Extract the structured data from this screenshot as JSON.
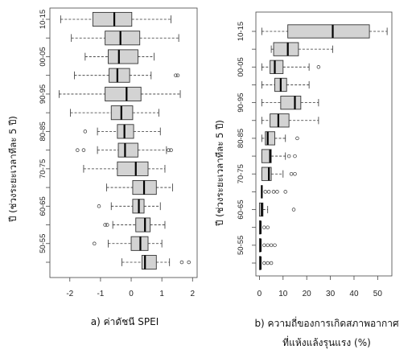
{
  "chart_data": [
    {
      "type": "boxplot",
      "orientation": "horizontal",
      "ylabel": "ปี (ช่วงระยะเวลาทีละ 5 ปี)",
      "caption": "a) ค่าดัชนี SPEI",
      "xticks": [
        -2,
        -1,
        0,
        1,
        2
      ],
      "xlim": [
        -2.65,
        2.15
      ],
      "categories_labeled": [
        "10-15",
        "00-05",
        "90-95",
        "80-85",
        "70-75",
        "60-65",
        "50-55"
      ],
      "boxes": [
        {
          "min": -2.3,
          "q1": -1.25,
          "median": -0.55,
          "q3": 0.02,
          "max": 1.3,
          "outliers": []
        },
        {
          "min": -1.95,
          "q1": -0.85,
          "median": -0.35,
          "q3": 0.28,
          "max": 1.55,
          "outliers": []
        },
        {
          "min": -1.5,
          "q1": -0.75,
          "median": -0.4,
          "q3": 0.22,
          "max": 0.75,
          "outliers": []
        },
        {
          "min": -1.85,
          "q1": -0.72,
          "median": -0.45,
          "q3": -0.05,
          "max": 0.65,
          "outliers": [
            1.45,
            1.52
          ]
        },
        {
          "min": -2.35,
          "q1": -0.85,
          "median": -0.15,
          "q3": 0.32,
          "max": 1.6,
          "outliers": []
        },
        {
          "min": -1.98,
          "q1": -0.65,
          "median": -0.32,
          "q3": 0.05,
          "max": 0.9,
          "outliers": []
        },
        {
          "min": -1.1,
          "q1": -0.45,
          "median": -0.22,
          "q3": 0.08,
          "max": 0.95,
          "outliers": [
            -1.5
          ]
        },
        {
          "min": -1.1,
          "q1": -0.42,
          "median": -0.2,
          "q3": 0.22,
          "max": 1.15,
          "outliers": [
            -1.75,
            -1.55,
            1.22,
            1.3
          ]
        },
        {
          "min": -1.55,
          "q1": -0.45,
          "median": 0.15,
          "q3": 0.55,
          "max": 1.1,
          "outliers": []
        },
        {
          "min": -0.8,
          "q1": 0.05,
          "median": 0.42,
          "q3": 0.82,
          "max": 1.35,
          "outliers": []
        },
        {
          "min": -0.65,
          "q1": 0.05,
          "median": 0.25,
          "q3": 0.42,
          "max": 0.95,
          "outliers": [
            -1.05
          ]
        },
        {
          "min": -0.6,
          "q1": 0.15,
          "median": 0.45,
          "q3": 0.62,
          "max": 1.1,
          "outliers": [
            -0.85,
            -0.78
          ]
        },
        {
          "min": -0.75,
          "q1": 0.0,
          "median": 0.3,
          "q3": 0.55,
          "max": 1.0,
          "outliers": [
            -1.2
          ]
        },
        {
          "min": -0.3,
          "q1": 0.35,
          "median": 0.45,
          "q3": 0.82,
          "max": 1.25,
          "outliers": [
            1.65,
            1.88
          ]
        }
      ]
    },
    {
      "type": "boxplot",
      "orientation": "horizontal",
      "ylabel": "ปี (ช่วงระยะเวลาทีละ 5 ปี)",
      "caption_line1": "b) ความถี่ของการเกิดสภาพอากาศ",
      "caption_line2": "ที่แห้งแล้งรุนแรง (%)",
      "xticks": [
        0,
        10,
        20,
        30,
        40,
        50
      ],
      "xlim": [
        -1.5,
        56
      ],
      "categories_labeled": [
        "10-15",
        "00-05",
        "90-95",
        "80-85",
        "70-75",
        "60-65",
        "50-55"
      ],
      "boxes": [
        {
          "min": 1,
          "q1": 12,
          "median": 31,
          "q3": 46.5,
          "max": 54,
          "outliers": []
        },
        {
          "min": 5,
          "q1": 6,
          "median": 12,
          "q3": 16.5,
          "max": 31,
          "outliers": []
        },
        {
          "min": 1,
          "q1": 4.5,
          "median": 6.5,
          "q3": 10,
          "max": 21,
          "outliers": [
            25
          ]
        },
        {
          "min": 1,
          "q1": 6.5,
          "median": 9,
          "q3": 11.5,
          "max": 21,
          "outliers": []
        },
        {
          "min": 1,
          "q1": 9,
          "median": 15,
          "q3": 17.5,
          "max": 25,
          "outliers": []
        },
        {
          "min": 1,
          "q1": 4.5,
          "median": 8,
          "q3": 12.5,
          "max": 25,
          "outliers": []
        },
        {
          "min": 1,
          "q1": 2.5,
          "median": 3.5,
          "q3": 6.5,
          "max": 11,
          "outliers": [
            16
          ]
        },
        {
          "min": 1,
          "q1": 1,
          "median": 4.5,
          "q3": 5,
          "max": 11,
          "outliers": [
            12.5,
            15
          ]
        },
        {
          "min": 1,
          "q1": 1,
          "median": 4,
          "q3": 5,
          "max": 10,
          "outliers": [
            13.5,
            15
          ]
        },
        {
          "min": 1,
          "q1": 1,
          "median": 1,
          "q3": 1,
          "max": 1,
          "outliers": [
            2.5,
            4,
            6,
            7.5,
            11
          ]
        },
        {
          "min": 0,
          "q1": 0,
          "median": 1,
          "q3": 1.5,
          "max": 3.5,
          "outliers": [
            14.5
          ]
        },
        {
          "min": 0,
          "q1": 0,
          "median": 0.5,
          "q3": 0.5,
          "max": 0.5,
          "outliers": [
            2,
            3.5
          ]
        },
        {
          "min": 0,
          "q1": 0,
          "median": 0.5,
          "q3": 0.5,
          "max": 0.5,
          "outliers": [
            2,
            3.5,
            5,
            6.5
          ]
        },
        {
          "min": 0,
          "q1": 0,
          "median": 0.5,
          "q3": 0.5,
          "max": 0.5,
          "outliers": [
            2,
            3.5,
            5
          ]
        }
      ]
    }
  ]
}
